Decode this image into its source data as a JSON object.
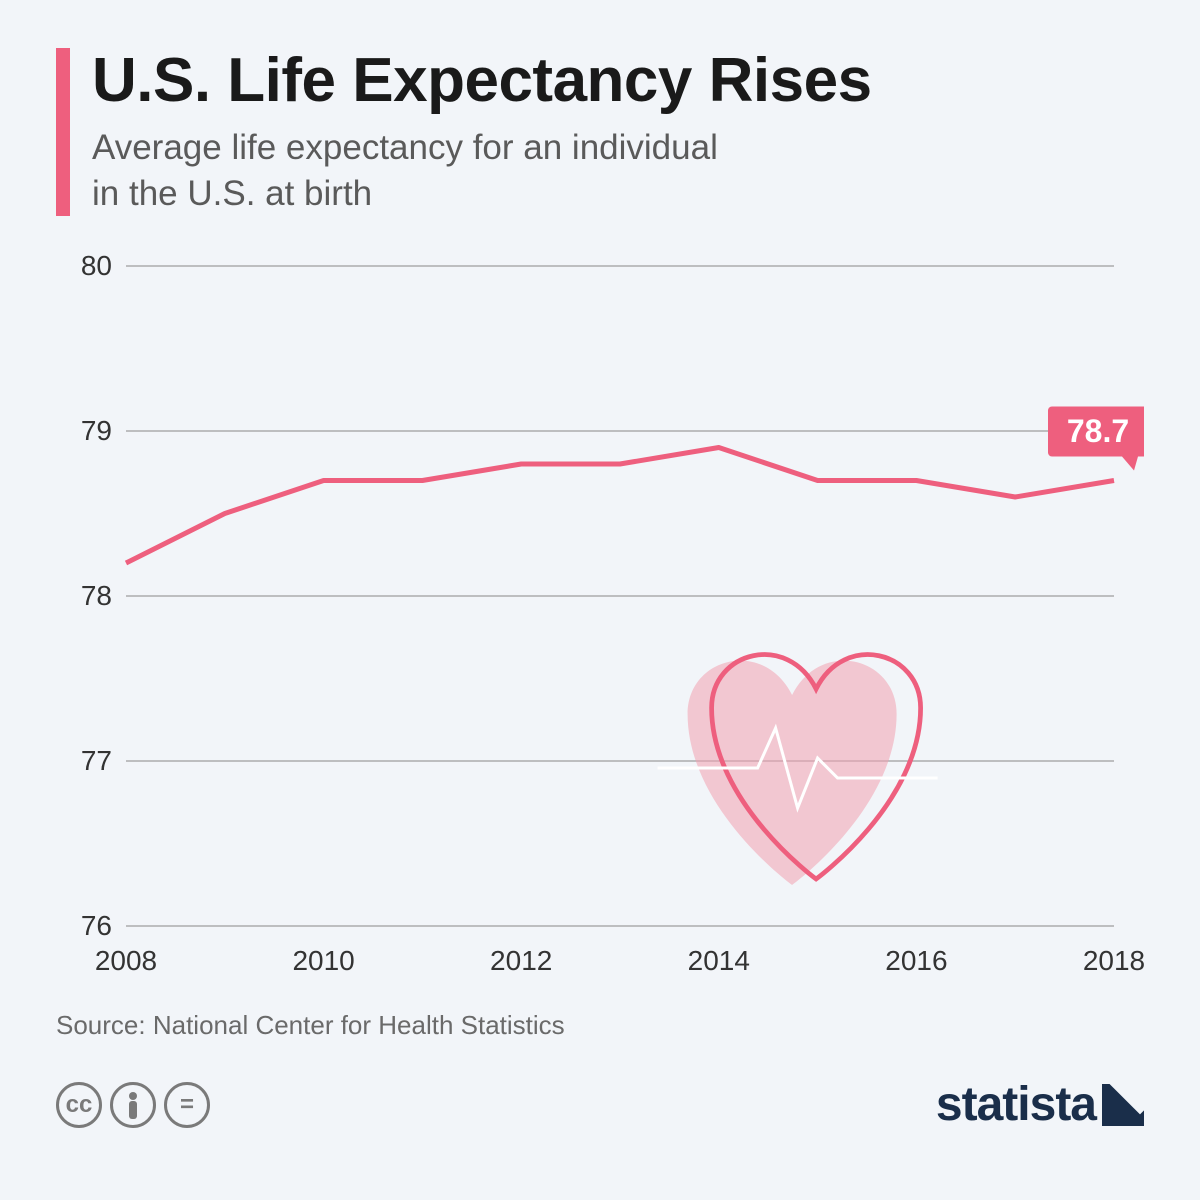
{
  "header": {
    "title": "U.S. Life Expectancy Rises",
    "subtitle": "Average life expectancy for an individual\nin the U.S. at birth",
    "accent_color": "#ee5f7e"
  },
  "chart": {
    "type": "line",
    "x_values": [
      2008,
      2009,
      2010,
      2011,
      2012,
      2013,
      2014,
      2015,
      2016,
      2017,
      2018
    ],
    "y_values": [
      78.2,
      78.5,
      78.7,
      78.7,
      78.8,
      78.8,
      78.9,
      78.7,
      78.7,
      78.6,
      78.7
    ],
    "line_color": "#ee5f7e",
    "line_width": 5,
    "ylim": [
      76,
      80
    ],
    "yticks": [
      76,
      77,
      78,
      79,
      80
    ],
    "xticks": [
      2008,
      2010,
      2012,
      2014,
      2016,
      2018
    ],
    "grid_color": "#888888",
    "background_color": "#f2f5f9",
    "callout": {
      "label": "78.7",
      "box_color": "#ee5f7e",
      "text_color": "#ffffff"
    },
    "heart_icon": {
      "fill_color": "#f2a0b0",
      "outline_color": "#ee5f7e"
    },
    "label_fontsize": 28
  },
  "source": "Source: National Center for Health Statistics",
  "footer": {
    "cc_glyphs": [
      "cc",
      "🧍",
      "="
    ],
    "logo_text": "statista",
    "logo_color": "#1a2e4a"
  }
}
